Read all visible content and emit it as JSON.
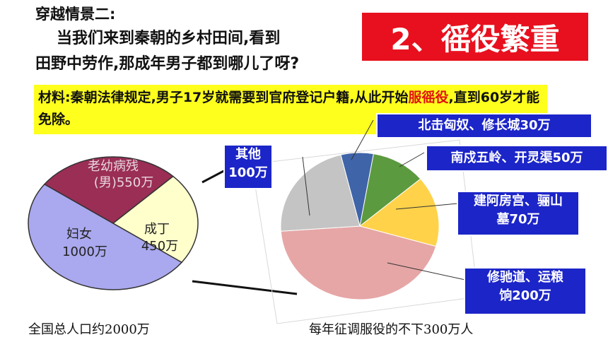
{
  "scene": {
    "title": "穿越情景二:",
    "line1": "当我们来到秦朝的乡村田间,看到",
    "line2": "田野中劳作,那成年男子都到哪儿了呀?"
  },
  "banner": {
    "text": "2、徭役繁重"
  },
  "material": {
    "part1": "材料:秦朝法律规定,男子17岁就需要到官府登记户籍,从此开始",
    "highlight": "服徭役",
    "part2": ",直到60岁才能免除。"
  },
  "chart_data": [
    {
      "type": "pie",
      "caption": "全国总人口约2000万",
      "slices": [
        {
          "label_line1": "妇女",
          "label_line2": "1000万",
          "value": 1000,
          "color": "#aaa8ee"
        },
        {
          "label_line1": "老幼病残",
          "label_line2": "(男)550万",
          "value": 550,
          "color": "#9a2e55"
        },
        {
          "label_line1": "成丁",
          "label_line2": "450万",
          "value": 450,
          "color": "#ffffcc"
        }
      ]
    },
    {
      "type": "pie",
      "caption": "每年征调服役的不下300万人",
      "slices": [
        {
          "label": "北击匈奴、修长城30万",
          "value": 30,
          "color": "#3f64a8"
        },
        {
          "label": "南戍五岭、开灵渠50万",
          "value": 50,
          "color": "#5c9a40"
        },
        {
          "label_line1": "建阿房宫、骊山",
          "label_line2": "墓70万",
          "value": 70,
          "color": "#ffd24a"
        },
        {
          "label_line1": "修驰道、运粮",
          "label_line2": "饷200万",
          "value": 200,
          "color": "#e6a6a6"
        },
        {
          "label_line1": "其他",
          "label_line2": "100万",
          "value": 100,
          "color": "#c4c4c4"
        }
      ]
    }
  ]
}
